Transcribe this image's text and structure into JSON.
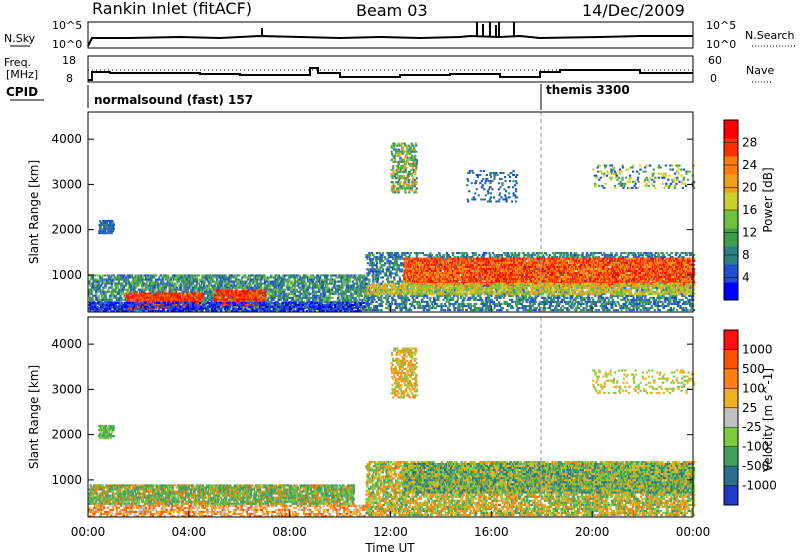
{
  "header": {
    "station": "Rankin Inlet (fitACF)",
    "beam": "Beam 03",
    "date": "14/Dec/2009"
  },
  "noise_panel": {
    "left_label": "N.Sky",
    "left_ticks": [
      "10^5",
      "10^0"
    ],
    "right_label": "N.Search",
    "right_ticks": [
      "10^5",
      "10^0"
    ]
  },
  "freq_panel": {
    "left_label_1": "Freq.",
    "left_label_2": "[MHz]",
    "left_ticks": [
      "18",
      "8"
    ],
    "right_label": "Nave",
    "right_ticks": [
      "60",
      "0"
    ]
  },
  "cpid": {
    "label": "CPID",
    "segments": [
      {
        "name": "normalsound (fast) 157",
        "start_hour": 0
      },
      {
        "name": "themis 3300",
        "start_hour": 18
      }
    ]
  },
  "x_axis": {
    "label": "Time UT",
    "ticks": [
      "00:00",
      "04:00",
      "08:00",
      "12:00",
      "16:00",
      "20:00",
      "00:00"
    ]
  },
  "chart_data": [
    {
      "type": "heatmap",
      "name": "power",
      "ylabel": "Slant Range [km]",
      "yticks": [
        1000,
        2000,
        3000,
        4000
      ],
      "ylim": [
        180,
        4600
      ],
      "xlim_hours": [
        0,
        24
      ],
      "colorbar": {
        "label": "Power [dB]",
        "ticks": [
          "28",
          "24",
          "20",
          "16",
          "12",
          "8",
          "4"
        ],
        "colors": [
          "#0000ff",
          "#1f4fcf",
          "#2f7f7f",
          "#3f9f4f",
          "#70c040",
          "#c8d02c",
          "#f0a020",
          "#ff7a10",
          "#ff3000",
          "#ff0000"
        ]
      }
    },
    {
      "type": "heatmap",
      "name": "velocity",
      "ylabel": "Slant Range [km]",
      "yticks": [
        1000,
        2000,
        3000,
        4000
      ],
      "ylim": [
        180,
        4600
      ],
      "xlim_hours": [
        0,
        24
      ],
      "colorbar": {
        "label": "Velocity [m s^-1]",
        "ticks": [
          "1000",
          "500",
          "100",
          "25",
          "-25",
          "-100",
          "-500",
          "-1000"
        ],
        "colors": [
          "#1c3cc8",
          "#2c6f8a",
          "#3fa060",
          "#7ccc40",
          "#c0c0c0",
          "#f0b020",
          "#ff8010",
          "#ff5000",
          "#ff1010"
        ]
      }
    }
  ]
}
